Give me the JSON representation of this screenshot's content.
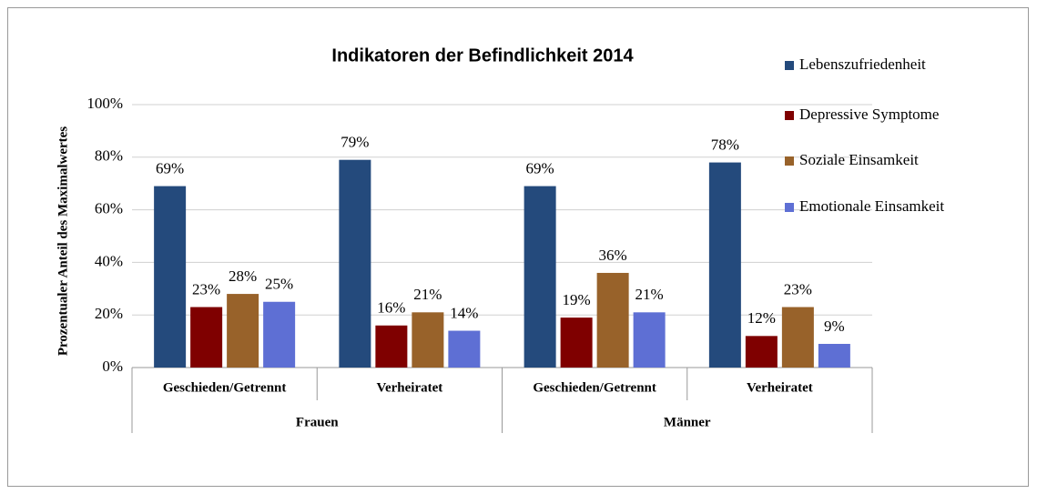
{
  "chart_data": {
    "type": "bar",
    "title": "Indikatoren der Befindlichkeit 2014",
    "y_label": "Prozentualer Anteil des Maximalwertes",
    "categories": [
      "Geschieden/Getrennt",
      "Verheiratet",
      "Geschieden/Getrennt",
      "Verheiratet"
    ],
    "groups": [
      "Frauen",
      "Männer"
    ],
    "series": [
      {
        "name": "Lebenszufriedenheit",
        "color": "#244a7c",
        "values": [
          69,
          79,
          69,
          78
        ],
        "value_labels": [
          "69%",
          "79%",
          "69%",
          "78%"
        ]
      },
      {
        "name": "Depressive Symptome",
        "color": "#7f0000",
        "values": [
          23,
          16,
          19,
          12
        ],
        "value_labels": [
          "23%",
          "16%",
          "19%",
          "12%"
        ]
      },
      {
        "name": "Soziale Einsamkeit",
        "color": "#98622a",
        "values": [
          28,
          21,
          36,
          23
        ],
        "value_labels": [
          "28%",
          "21%",
          "36%",
          "23%"
        ]
      },
      {
        "name": "Emotionale Einsamkeit",
        "color": "#5e6fd4",
        "values": [
          25,
          14,
          21,
          9
        ],
        "value_labels": [
          "25%",
          "14%",
          "21%",
          "9%"
        ]
      }
    ],
    "ylim": [
      0,
      100
    ],
    "yticks": [
      {
        "value": 0,
        "label": "0%"
      },
      {
        "value": 20,
        "label": "20%"
      },
      {
        "value": 40,
        "label": "40%"
      },
      {
        "value": 60,
        "label": "60%"
      },
      {
        "value": 80,
        "label": "80%"
      },
      {
        "value": 100,
        "label": "100%"
      }
    ],
    "grid": true,
    "legend": "right"
  }
}
